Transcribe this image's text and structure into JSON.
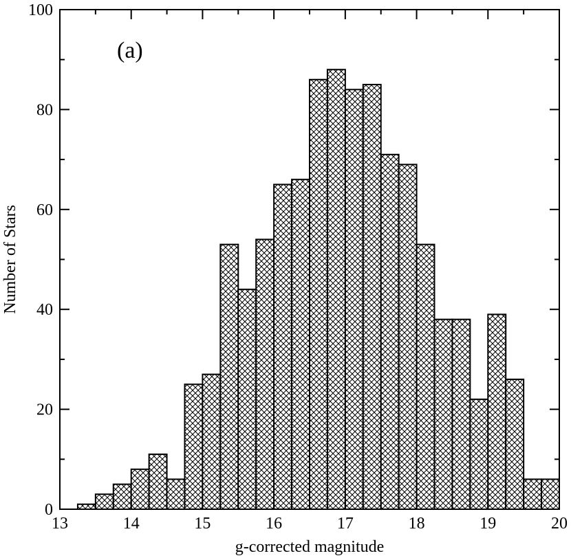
{
  "chart_data": {
    "type": "bar",
    "panel_label": "(a)",
    "xlabel": "g-corrected magnitude",
    "ylabel": "Number of Stars",
    "xlim": [
      13,
      20
    ],
    "ylim": [
      0,
      100
    ],
    "x_major_ticks": [
      13,
      14,
      15,
      16,
      17,
      18,
      19,
      20
    ],
    "y_major_ticks": [
      0,
      20,
      40,
      60,
      80,
      100
    ],
    "y_minor_ticks": [
      10,
      30,
      50,
      70,
      90
    ],
    "x_minor_ticks": [
      13.5,
      14.5,
      15.5,
      16.5,
      17.5,
      18.5,
      19.5
    ],
    "bin_width": 0.25,
    "bins": [
      {
        "x0": 13.25,
        "x1": 13.5,
        "value": 1
      },
      {
        "x0": 13.5,
        "x1": 13.75,
        "value": 3
      },
      {
        "x0": 13.75,
        "x1": 14.0,
        "value": 5
      },
      {
        "x0": 14.0,
        "x1": 14.25,
        "value": 8
      },
      {
        "x0": 14.25,
        "x1": 14.5,
        "value": 11
      },
      {
        "x0": 14.5,
        "x1": 14.75,
        "value": 6
      },
      {
        "x0": 14.75,
        "x1": 15.0,
        "value": 25
      },
      {
        "x0": 15.0,
        "x1": 15.25,
        "value": 27
      },
      {
        "x0": 15.25,
        "x1": 15.5,
        "value": 53
      },
      {
        "x0": 15.5,
        "x1": 15.75,
        "value": 44
      },
      {
        "x0": 15.75,
        "x1": 16.0,
        "value": 54
      },
      {
        "x0": 16.0,
        "x1": 16.25,
        "value": 65
      },
      {
        "x0": 16.25,
        "x1": 16.5,
        "value": 66
      },
      {
        "x0": 16.5,
        "x1": 16.75,
        "value": 86
      },
      {
        "x0": 16.75,
        "x1": 17.0,
        "value": 88
      },
      {
        "x0": 17.0,
        "x1": 17.25,
        "value": 84
      },
      {
        "x0": 17.25,
        "x1": 17.5,
        "value": 85
      },
      {
        "x0": 17.5,
        "x1": 17.75,
        "value": 71
      },
      {
        "x0": 17.75,
        "x1": 18.0,
        "value": 69
      },
      {
        "x0": 18.0,
        "x1": 18.25,
        "value": 53
      },
      {
        "x0": 18.25,
        "x1": 18.5,
        "value": 38
      },
      {
        "x0": 18.5,
        "x1": 18.75,
        "value": 38
      },
      {
        "x0": 18.75,
        "x1": 19.0,
        "value": 22
      },
      {
        "x0": 19.0,
        "x1": 19.25,
        "value": 39
      },
      {
        "x0": 19.25,
        "x1": 19.5,
        "value": 26
      },
      {
        "x0": 19.5,
        "x1": 19.75,
        "value": 6
      },
      {
        "x0": 19.75,
        "x1": 20.0,
        "value": 6
      }
    ],
    "fill_pattern": "crosshatch",
    "bar_edge_color": "#000000",
    "grid": false
  }
}
